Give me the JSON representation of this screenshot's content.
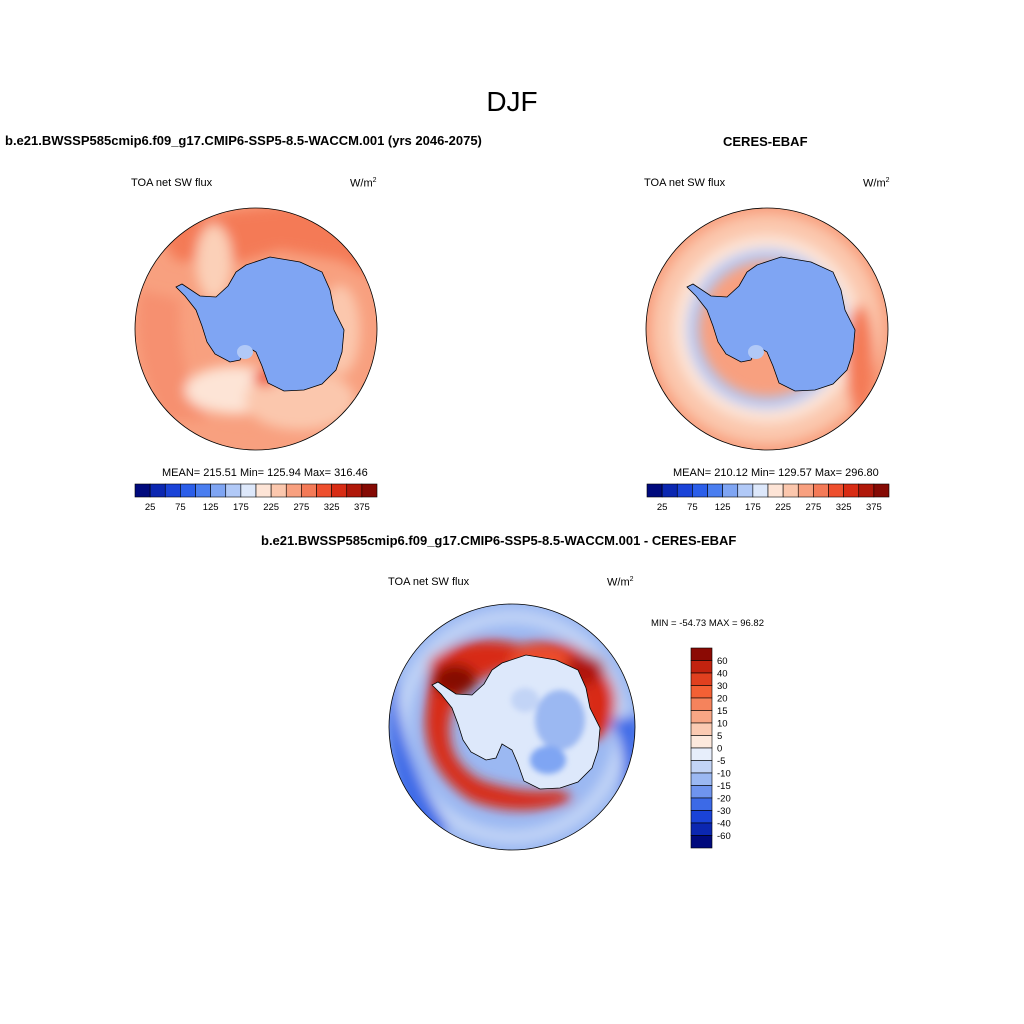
{
  "main_title": "DJF",
  "panels": [
    {
      "title": "b.e21.BWSSP585cmip6.f09_g17.CMIP6-SSP5-8.5-WACCM.001 (yrs 2046-2075)",
      "left_label": "TOA net SW flux",
      "units": "W/m",
      "units_sup": "2",
      "stats": "MEAN= 215.51  Min= 125.94  Max= 316.46"
    },
    {
      "title": "CERES-EBAF",
      "left_label": "TOA net SW flux",
      "units": "W/m",
      "units_sup": "2",
      "stats": "MEAN= 210.12  Min= 129.57  Max= 296.80"
    },
    {
      "title": "b.e21.BWSSP585cmip6.f09_g17.CMIP6-SSP5-8.5-WACCM.001 - CERES-EBAF",
      "left_label": "TOA net SW flux",
      "units": "W/m",
      "units_sup": "2",
      "stats": "MIN = -54.73 MAX =  96.82"
    }
  ],
  "colorbar_h": {
    "labels": [
      "25",
      "75",
      "125",
      "175",
      "225",
      "275",
      "325",
      "375"
    ],
    "colors": [
      "#000a7d",
      "#0b27b1",
      "#1a43d8",
      "#2b5ee9",
      "#4a7ef0",
      "#7fa5f3",
      "#b1c9f7",
      "#dde8fb",
      "#fde4d6",
      "#fbc7ad",
      "#f8a07f",
      "#f47a57",
      "#ee4f2e",
      "#d82c14",
      "#b0180a",
      "#850a04"
    ]
  },
  "colorbar_v": {
    "labels": [
      "60",
      "40",
      "30",
      "20",
      "15",
      "10",
      "5",
      "0",
      "-5",
      "-10",
      "-15",
      "-20",
      "-30",
      "-40",
      "-60"
    ],
    "colors": [
      "#8b0a04",
      "#c2230f",
      "#e0401f",
      "#f36034",
      "#f5835c",
      "#f8a685",
      "#fbcab2",
      "#fde9dd",
      "#e7eefb",
      "#c2d4f6",
      "#9bb8f2",
      "#6f94ee",
      "#3c6ae7",
      "#1a43d8",
      "#0b27b1",
      "#000a7d"
    ]
  }
}
